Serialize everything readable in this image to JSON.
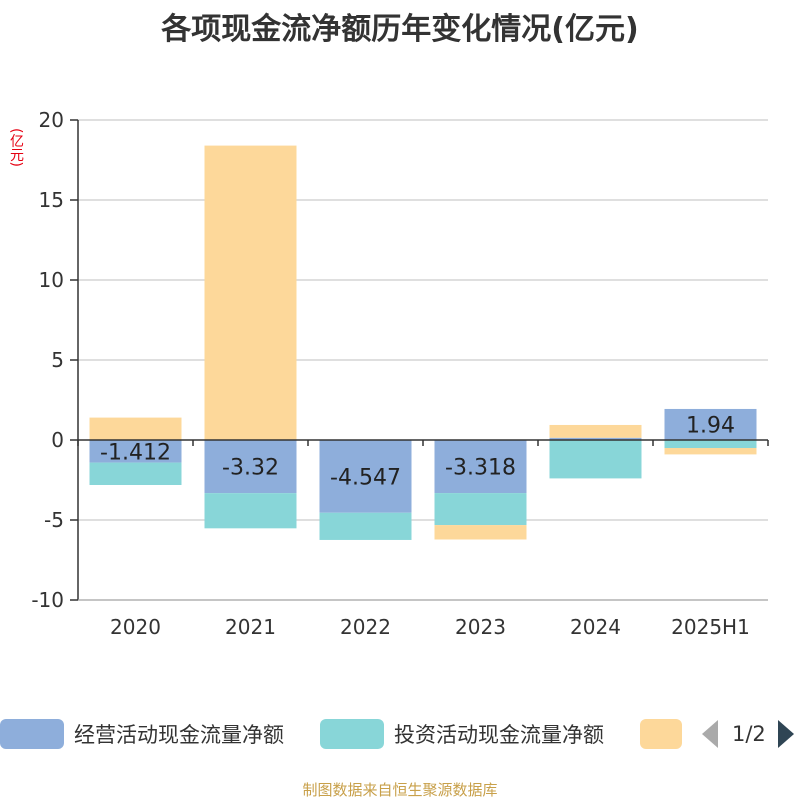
{
  "title": "各项现金流净额历年变化情况(亿元)",
  "y_unit": "(亿元)",
  "footer": "制图数据来自恒生聚源数据库",
  "legend": {
    "page_indicator": "1/2"
  },
  "colors": {
    "operating": "#8eaedb",
    "investing": "#88d6d8",
    "financing": "#fdd89a"
  },
  "chart_data": {
    "type": "bar",
    "stacked": true,
    "categories": [
      "2020",
      "2021",
      "2022",
      "2023",
      "2024",
      "2025H1"
    ],
    "ylim": [
      -10,
      20
    ],
    "yticks": [
      -10,
      -5,
      0,
      5,
      10,
      15,
      20
    ],
    "grid": true,
    "legend_position": "bottom",
    "series": [
      {
        "name": "经营活动现金流量净额",
        "values": [
          -1.412,
          -3.32,
          -4.547,
          -3.318,
          0.14,
          1.94
        ],
        "labels": [
          "-1.412",
          "-3.32",
          "-4.547",
          "-3.318",
          "",
          "1.94"
        ]
      },
      {
        "name": "投资活动现金流量净额",
        "values": [
          -1.4,
          -2.2,
          -1.7,
          -2.0,
          -2.4,
          -0.5
        ],
        "labels": []
      },
      {
        "name": "",
        "values": [
          1.4,
          18.4,
          0.0,
          -0.9,
          0.8,
          -0.4
        ],
        "labels": []
      }
    ]
  }
}
